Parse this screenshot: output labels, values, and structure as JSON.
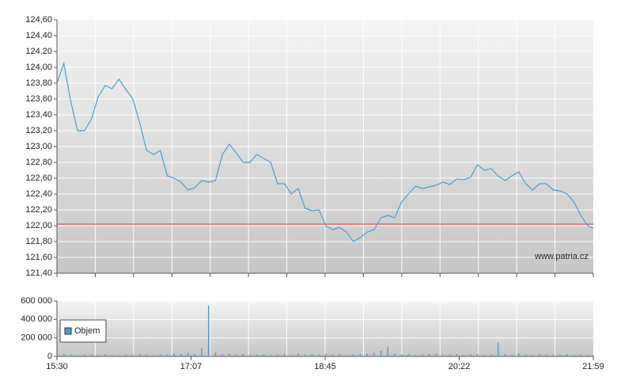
{
  "chart_data": [
    {
      "type": "line",
      "annotation": "www.patria.cz",
      "x": [
        930,
        935,
        940,
        945,
        950,
        955,
        960,
        965,
        970,
        975,
        980,
        985,
        990,
        995,
        1000,
        1005,
        1010,
        1015,
        1020,
        1025,
        1030,
        1035,
        1040,
        1045,
        1050,
        1055,
        1060,
        1065,
        1070,
        1075,
        1080,
        1085,
        1090,
        1095,
        1100,
        1105,
        1110,
        1115,
        1120,
        1125,
        1130,
        1135,
        1140,
        1145,
        1150,
        1155,
        1160,
        1165,
        1170,
        1175,
        1180,
        1185,
        1190,
        1195,
        1200,
        1205,
        1210,
        1215,
        1220,
        1225,
        1230,
        1235,
        1240,
        1245,
        1250,
        1255,
        1260,
        1265,
        1270,
        1275,
        1280,
        1285,
        1290,
        1295,
        1300,
        1305,
        1310,
        1315,
        1319
      ],
      "values": [
        123.8,
        124.05,
        123.57,
        123.2,
        123.2,
        123.35,
        123.63,
        123.77,
        123.73,
        123.85,
        123.72,
        123.6,
        123.3,
        122.95,
        122.9,
        122.95,
        122.63,
        122.6,
        122.55,
        122.45,
        122.48,
        122.57,
        122.55,
        122.57,
        122.9,
        123.03,
        122.92,
        122.8,
        122.8,
        122.9,
        122.85,
        122.8,
        122.53,
        122.53,
        122.4,
        122.47,
        122.22,
        122.19,
        122.2,
        122.0,
        121.95,
        121.98,
        121.92,
        121.8,
        121.85,
        121.92,
        121.95,
        122.1,
        122.13,
        122.1,
        122.3,
        122.4,
        122.5,
        122.47,
        122.49,
        122.51,
        122.55,
        122.52,
        122.59,
        122.58,
        122.61,
        122.77,
        122.7,
        122.72,
        122.63,
        122.57,
        122.63,
        122.68,
        122.53,
        122.45,
        122.53,
        122.53,
        122.45,
        122.44,
        122.4,
        122.3,
        122.13,
        122.0,
        121.97
      ],
      "color": "#4a9fd0",
      "xlim": [
        930,
        1319
      ],
      "ylim": [
        121.4,
        124.6
      ],
      "yticks": [
        {
          "value": 121.4,
          "label": "121,40"
        },
        {
          "value": 121.6,
          "label": "121,60"
        },
        {
          "value": 121.8,
          "label": "121,80"
        },
        {
          "value": 122.0,
          "label": "122,00"
        },
        {
          "value": 122.2,
          "label": "122,20"
        },
        {
          "value": 122.4,
          "label": "122,40"
        },
        {
          "value": 122.6,
          "label": "122,60"
        },
        {
          "value": 122.8,
          "label": "122,80"
        },
        {
          "value": 123.0,
          "label": "123,00"
        },
        {
          "value": 123.2,
          "label": "123,20"
        },
        {
          "value": 123.4,
          "label": "123,40"
        },
        {
          "value": 123.6,
          "label": "123,60"
        },
        {
          "value": 123.8,
          "label": "123,80"
        },
        {
          "value": 124.0,
          "label": "124,00"
        },
        {
          "value": 124.2,
          "label": "124,20"
        },
        {
          "value": 124.4,
          "label": "124,40"
        },
        {
          "value": 124.6,
          "label": "124,60"
        }
      ],
      "hline": 122.02,
      "hline_color": "#e03030",
      "grid": true
    },
    {
      "type": "bar",
      "x": [
        930,
        935,
        940,
        945,
        950,
        955,
        960,
        965,
        970,
        975,
        980,
        985,
        990,
        995,
        1000,
        1005,
        1010,
        1015,
        1020,
        1025,
        1030,
        1035,
        1040,
        1045,
        1050,
        1055,
        1060,
        1065,
        1070,
        1075,
        1080,
        1085,
        1090,
        1095,
        1100,
        1105,
        1110,
        1115,
        1120,
        1125,
        1130,
        1135,
        1140,
        1145,
        1150,
        1155,
        1160,
        1165,
        1170,
        1175,
        1180,
        1185,
        1190,
        1195,
        1200,
        1205,
        1210,
        1215,
        1220,
        1225,
        1230,
        1235,
        1240,
        1245,
        1250,
        1255,
        1260,
        1265,
        1270,
        1275,
        1280,
        1285,
        1290,
        1295,
        1300,
        1305,
        1310,
        1315,
        1319
      ],
      "series": [
        {
          "name": "Objem",
          "color": "#4a9fd0",
          "values": [
            30000,
            25000,
            20000,
            15000,
            20000,
            25000,
            15000,
            20000,
            15000,
            10000,
            20000,
            15000,
            25000,
            20000,
            15000,
            20000,
            15000,
            30000,
            25000,
            40000,
            25000,
            90000,
            550000,
            40000,
            25000,
            30000,
            20000,
            25000,
            15000,
            20000,
            25000,
            15000,
            20000,
            25000,
            15000,
            30000,
            20000,
            25000,
            15000,
            30000,
            20000,
            25000,
            15000,
            20000,
            25000,
            30000,
            40000,
            60000,
            100000,
            30000,
            20000,
            25000,
            15000,
            20000,
            25000,
            30000,
            15000,
            20000,
            25000,
            15000,
            20000,
            25000,
            15000,
            20000,
            150000,
            25000,
            15000,
            30000,
            20000,
            15000,
            25000,
            20000,
            15000,
            20000,
            25000,
            15000,
            20000,
            15000,
            10000
          ]
        }
      ],
      "xlim": [
        930,
        1319
      ],
      "xticks": [
        {
          "value": 930,
          "label": "15:30"
        },
        {
          "value": 1027.25,
          "label": "17:07"
        },
        {
          "value": 1124.5,
          "label": "18:45"
        },
        {
          "value": 1221.75,
          "label": "20:22"
        },
        {
          "value": 1319,
          "label": "21:59"
        }
      ],
      "ylim": [
        0,
        600000
      ],
      "yticks": [
        0,
        {
          "value": 200000,
          "label": "200 000"
        },
        {
          "value": 400000,
          "label": "400 000"
        },
        {
          "value": 600000,
          "label": "600 000"
        }
      ],
      "grid": true,
      "legend": "upper-left"
    }
  ]
}
